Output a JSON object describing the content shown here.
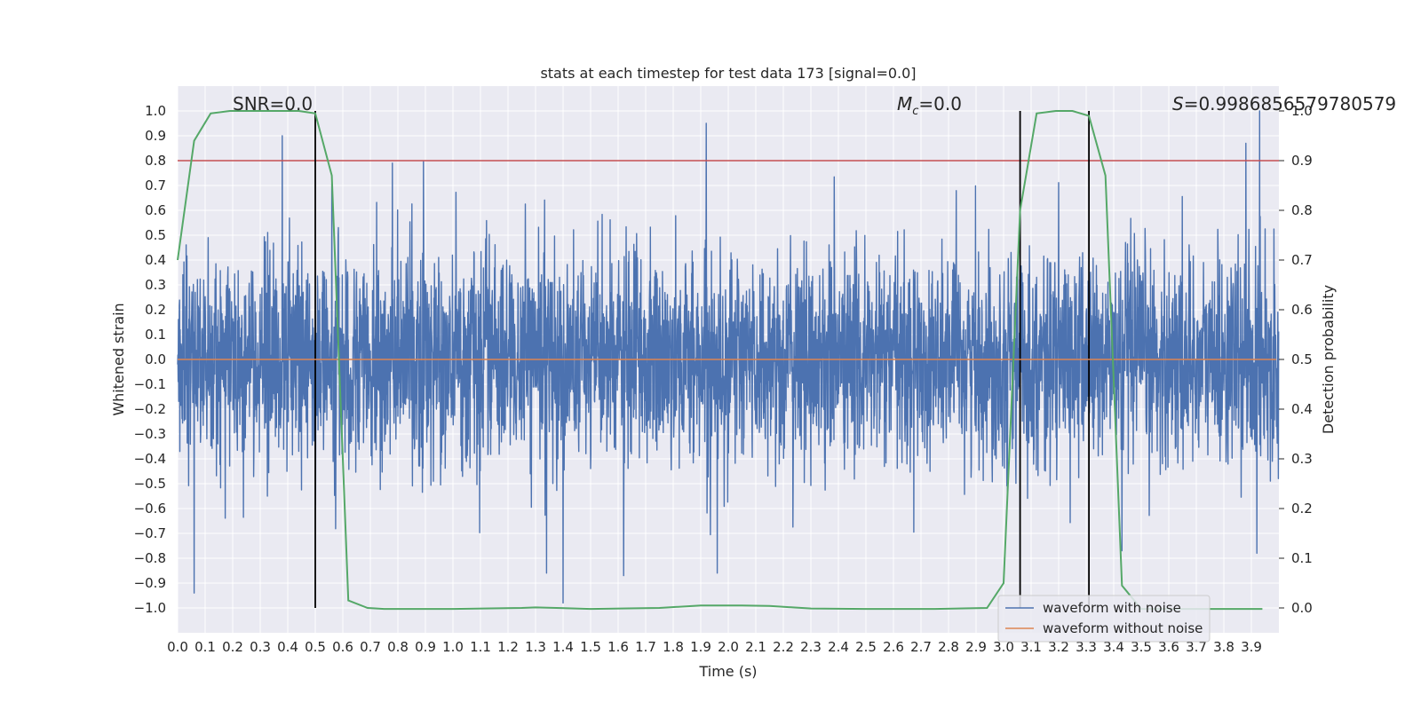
{
  "chart_data": {
    "type": "line",
    "title": "stats at each timestep for test data 173 [signal=0.0]",
    "xlabel": "Time (s)",
    "ylabel": "Whitened strain",
    "ylabel_right": "Detection probability",
    "xlim": [
      0.0,
      4.0
    ],
    "ylim": [
      -1.1,
      1.1
    ],
    "ylim_right": [
      -0.05,
      1.05
    ],
    "x_ticks": [
      "0.0",
      "0.1",
      "0.2",
      "0.3",
      "0.4",
      "0.5",
      "0.6",
      "0.7",
      "0.8",
      "0.9",
      "1.0",
      "1.1",
      "1.2",
      "1.3",
      "1.4",
      "1.5",
      "1.6",
      "1.7",
      "1.8",
      "1.9",
      "2.0",
      "2.1",
      "2.2",
      "2.3",
      "2.4",
      "2.5",
      "2.6",
      "2.7",
      "2.8",
      "2.9",
      "3.0",
      "3.1",
      "3.2",
      "3.3",
      "3.4",
      "3.5",
      "3.6",
      "3.7",
      "3.8",
      "3.9"
    ],
    "y_ticks": [
      "1.0",
      "0.9",
      "0.8",
      "0.7",
      "0.6",
      "0.5",
      "0.4",
      "0.3",
      "0.2",
      "0.1",
      "0.0",
      "−0.1",
      "−0.2",
      "−0.3",
      "−0.4",
      "−0.5",
      "−0.6",
      "−0.7",
      "−0.8",
      "−0.9",
      "−1.0"
    ],
    "y_right_ticks": [
      "1.0",
      "0.9",
      "0.8",
      "0.7",
      "0.6",
      "0.5",
      "0.4",
      "0.3",
      "0.2",
      "0.1",
      "0.0"
    ],
    "grid": true,
    "legend_position": "lower-right",
    "annotations": {
      "snr": "SNR=0.0",
      "mc_symbol": "M",
      "mc_subscript": "c",
      "mc_value": "=0.0",
      "s_symbol": "S",
      "s_value": "=0.9986856579780579"
    },
    "series": [
      {
        "name": "waveform with noise",
        "axis": "left",
        "color": "#4c72b0",
        "amplitude_envelope": 0.55,
        "sample_rate_hz": 1000,
        "peak_extremes": [
          {
            "x": 0.06,
            "y": -0.94
          },
          {
            "x": 0.38,
            "y": 0.9
          },
          {
            "x": 0.78,
            "y": 0.79
          },
          {
            "x": 1.34,
            "y": -0.86
          },
          {
            "x": 1.4,
            "y": -0.98
          },
          {
            "x": 1.62,
            "y": -0.87
          },
          {
            "x": 1.92,
            "y": 0.95
          },
          {
            "x": 1.96,
            "y": 0.93
          },
          {
            "x": 1.96,
            "y": -0.86
          },
          {
            "x": 3.06,
            "y": -0.92
          },
          {
            "x": 3.43,
            "y": -0.77
          },
          {
            "x": 3.88,
            "y": 0.87
          },
          {
            "x": 3.93,
            "y": 1.0
          },
          {
            "x": 3.92,
            "y": -0.78
          }
        ]
      },
      {
        "name": "waveform without noise",
        "axis": "left",
        "color": "#dd8452",
        "x": [
          0.0,
          3.99
        ],
        "y": [
          0.0,
          0.0
        ]
      },
      {
        "name": "detection probability",
        "axis": "right",
        "color": "#55a868",
        "x": [
          0.0,
          0.06,
          0.12,
          0.19,
          0.25,
          0.31,
          0.38,
          0.44,
          0.5,
          0.56,
          0.62,
          0.69,
          0.75,
          1.0,
          1.25,
          1.3,
          1.5,
          1.75,
          1.9,
          2.05,
          2.15,
          2.3,
          2.5,
          2.75,
          2.94,
          3.0,
          3.06,
          3.12,
          3.19,
          3.25,
          3.31,
          3.37,
          3.43,
          3.5,
          3.75,
          3.94
        ],
        "y": [
          0.7,
          0.94,
          0.995,
          1.0,
          1.0,
          1.0,
          1.0,
          1.0,
          0.995,
          0.87,
          0.015,
          0.0,
          -0.002,
          -0.002,
          0.0,
          0.001,
          -0.002,
          0.0,
          0.005,
          0.005,
          0.004,
          -0.001,
          -0.002,
          -0.002,
          0.0,
          0.05,
          0.8,
          0.995,
          1.0,
          1.0,
          0.99,
          0.87,
          0.045,
          -0.002,
          -0.002,
          -0.002
        ]
      }
    ],
    "reference_lines": [
      {
        "orientation": "horizontal",
        "axis": "left",
        "y": 0.8,
        "color": "#c44e52"
      },
      {
        "orientation": "vertical",
        "x": 0.5,
        "color": "#000000"
      },
      {
        "orientation": "vertical",
        "x": 3.06,
        "color": "#000000"
      },
      {
        "orientation": "vertical",
        "x": 3.31,
        "color": "#000000"
      }
    ]
  }
}
